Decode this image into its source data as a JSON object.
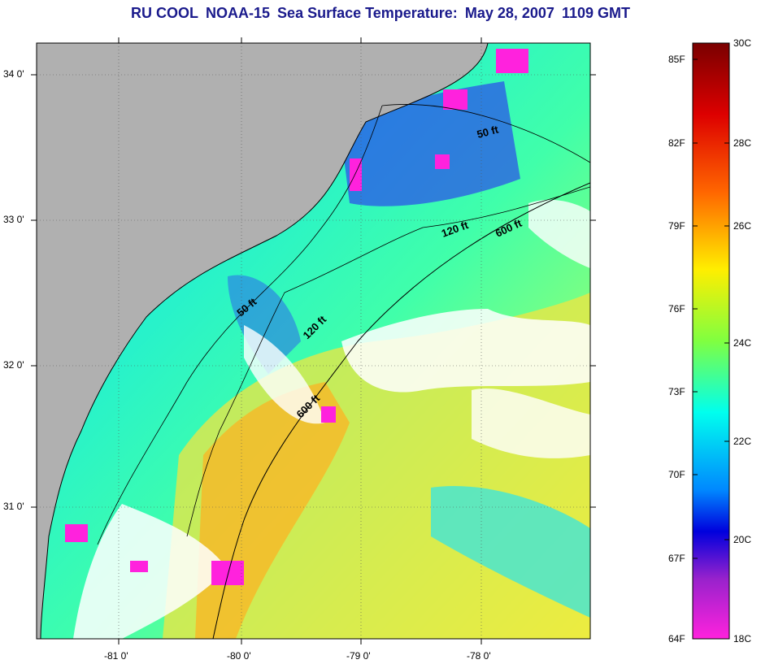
{
  "title": {
    "org": "RU COOL",
    "satellite": "NOAA-15",
    "product": "Sea Surface Temperature:",
    "date": "May 28, 2007",
    "time": "1109 GMT"
  },
  "map": {
    "lat_labels": [
      "34 0'",
      "33 0'",
      "32 0'",
      "31 0'"
    ],
    "lon_labels": [
      "-81 0'",
      "-80 0'",
      "-79 0'",
      "-78 0'"
    ],
    "land_color": "#b0b0b0",
    "cloud_color": "#ffffff",
    "isobath_labels": [
      "50 ft",
      "120 ft",
      "600 ft",
      "50 ft",
      "120 ft",
      "600 ft"
    ]
  },
  "colorbar": {
    "fahrenheit": [
      "85F",
      "82F",
      "79F",
      "76F",
      "73F",
      "70F",
      "67F",
      "64F"
    ],
    "celsius": [
      "30C",
      "28C",
      "26C",
      "24C",
      "22C",
      "20C",
      "18C"
    ],
    "colors": [
      "#7a0000",
      "#cc0000",
      "#ff3300",
      "#ff8800",
      "#ffcc00",
      "#ffff00",
      "#b8ff20",
      "#40ff80",
      "#00ffdd",
      "#00ccff",
      "#0088ff",
      "#0033ff",
      "#0000cc",
      "#8822cc",
      "#ff22dd"
    ]
  }
}
